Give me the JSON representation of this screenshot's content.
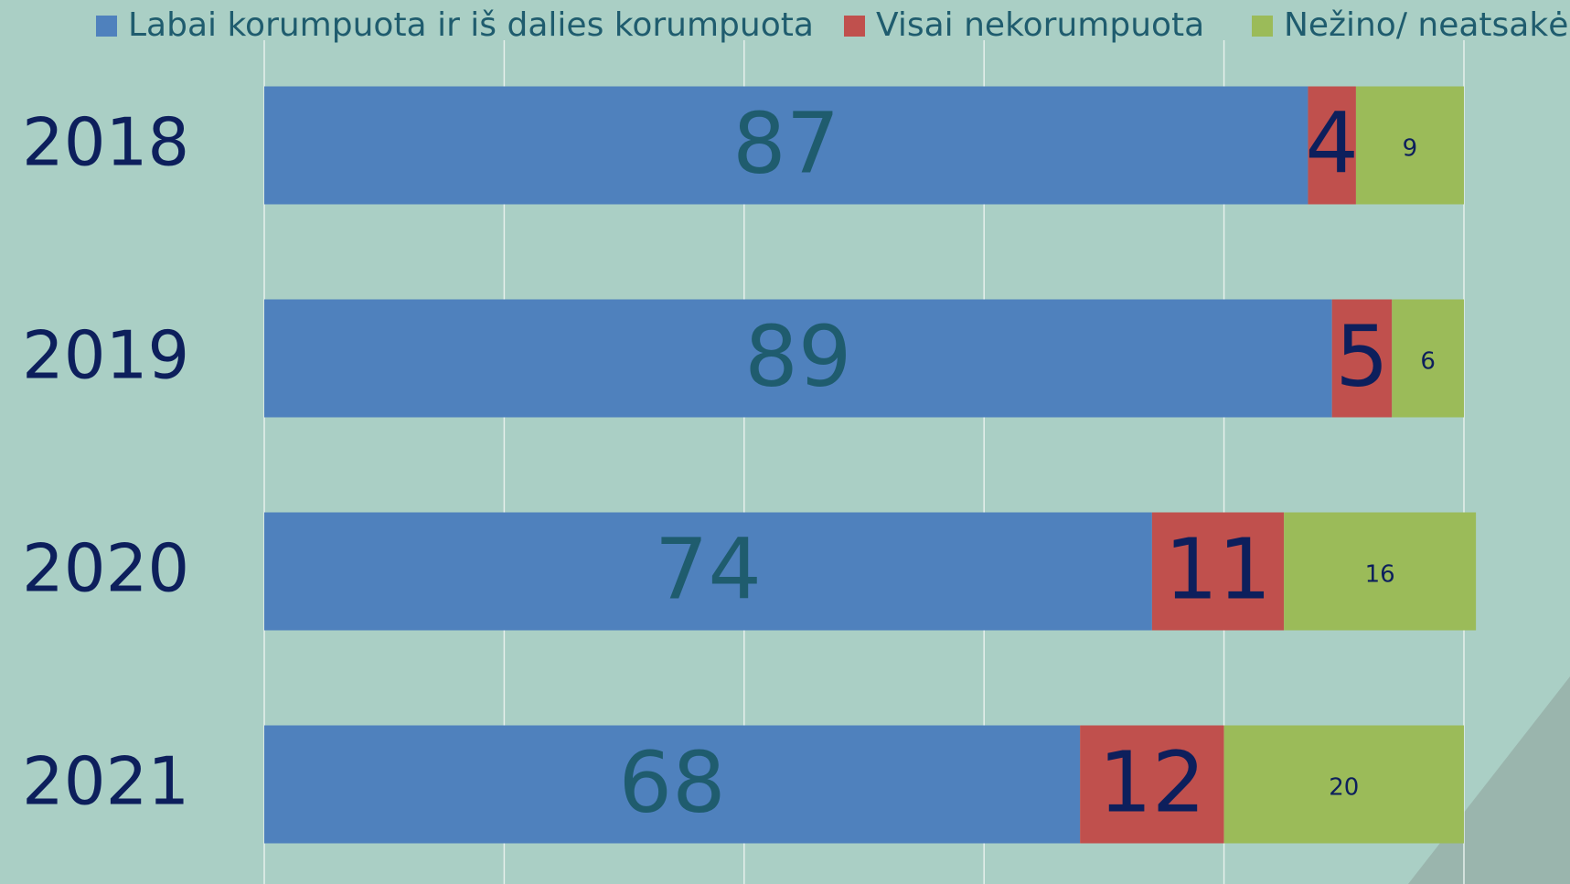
{
  "chart_data": {
    "type": "stacked-bar-horizontal",
    "categories": [
      "2018",
      "2019",
      "2020",
      "2021"
    ],
    "series": [
      {
        "name": "Labai korumpuota ir iš dalies korumpuota",
        "color": "#4f81bd",
        "values": [
          87,
          89,
          74,
          68
        ]
      },
      {
        "name": "Visai nekorumpuota",
        "color": "#c0504d",
        "values": [
          4,
          5,
          11,
          12
        ]
      },
      {
        "name": "Nežino/ neatsakė",
        "color": "#9bbb59",
        "values": [
          9,
          6,
          16,
          20
        ]
      }
    ],
    "xlim": [
      0,
      100
    ],
    "xticks": [
      0,
      20,
      40,
      60,
      80,
      100
    ],
    "grid": true
  }
}
